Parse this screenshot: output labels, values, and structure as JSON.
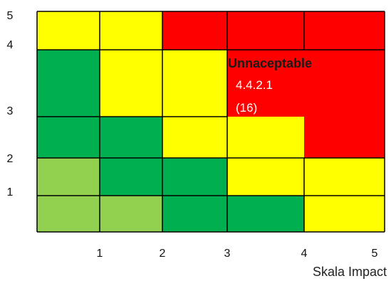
{
  "chart_data": {
    "type": "heatmap",
    "title": "",
    "xlabel": "Skala Impact",
    "ylabel": "",
    "x_ticks": [
      "1",
      "2",
      "3",
      "4",
      "5"
    ],
    "y_ticks": [
      "5",
      "4",
      "3",
      "2",
      "1"
    ],
    "colors": {
      "light_green": "#92d050",
      "green": "#00b050",
      "yellow": "#ffff00",
      "red": "#ff0000",
      "grid": "#000000"
    },
    "rows": [
      [
        "yellow",
        "yellow",
        "red",
        "red",
        "red"
      ],
      [
        "green",
        "yellow",
        "yellow",
        "red",
        "red"
      ],
      [
        "green",
        "green",
        "yellow",
        "yellow",
        "red"
      ],
      [
        "light_green",
        "green",
        "green",
        "yellow",
        "yellow"
      ],
      [
        "light_green",
        "light_green",
        "green",
        "green",
        "yellow"
      ]
    ],
    "annotation": {
      "title": "Unnaceptable",
      "code": "4.4.2.1",
      "value": "(16)"
    }
  }
}
